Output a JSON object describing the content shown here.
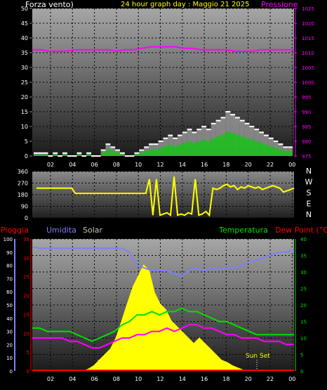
{
  "colors": {
    "wind": "#ffffff",
    "wind_fill": "#9a9a9a",
    "wind_avg": "#00d000",
    "pressure": "#ff00ff",
    "dir": "#ffff00",
    "rain": "#ff0000",
    "humidity": "#7f7fff",
    "solar": "#ffff00",
    "temperature": "#00e000",
    "dewpoint": "#ff00ff",
    "axis_text": "#ffffff",
    "title": "#ffff00"
  },
  "chart_data": [
    {
      "type": "line",
      "title": "24 hour graph day : Maggio 21 2025",
      "left_label": "Forza vento)",
      "right_label": "Pressione",
      "x_ticks": [
        "02",
        "04",
        "06",
        "08",
        "10",
        "12",
        "14",
        "16",
        "18",
        "20",
        "22",
        "00"
      ],
      "y_left_ticks": [
        0,
        5,
        10,
        15,
        20,
        25,
        30,
        35,
        40,
        45,
        50
      ],
      "y_right_ticks": [
        975,
        980,
        985,
        990,
        995,
        1000,
        1005,
        1010,
        1015,
        1020,
        1025
      ],
      "ylim_left": [
        0,
        50
      ],
      "ylim_right": [
        975,
        1025
      ],
      "grid": true,
      "series": [
        {
          "name": "Forza vento)",
          "values": [
            1,
            1,
            1,
            0,
            1,
            0,
            1,
            0,
            0,
            1,
            0,
            1,
            0,
            0,
            2,
            4,
            3,
            2,
            1,
            0,
            0,
            1,
            2,
            3,
            4,
            4,
            5,
            6,
            7,
            6,
            7,
            8,
            9,
            8,
            9,
            10,
            9,
            11,
            12,
            13,
            15,
            14,
            13,
            12,
            11,
            10,
            9,
            8,
            7,
            6,
            5,
            4,
            3,
            3
          ]
        },
        {
          "name": "Pressione",
          "values": [
            1011,
            1011,
            1010.5,
            1010.5,
            1010.5,
            1011,
            1011,
            1011,
            1011,
            1011,
            1010.5,
            1011,
            1011,
            1011.5,
            1012,
            1012,
            1012,
            1012,
            1011.5,
            1011.5,
            1011,
            1011,
            1011,
            1011,
            1010.5,
            1010.5,
            1010.5,
            1011,
            1011,
            1011,
            1011,
            1011
          ]
        }
      ]
    },
    {
      "type": "line",
      "title": "",
      "y_left_ticks": [
        0,
        90,
        180,
        270,
        360
      ],
      "y_right_ticks": [
        "N",
        "W",
        "S",
        "E",
        "N"
      ],
      "ylim_left": [
        0,
        360
      ],
      "grid": true,
      "series": [
        {
          "name": "direction",
          "values": [
            230,
            230,
            230,
            230,
            230,
            230,
            230,
            230,
            230,
            230,
            230,
            190,
            190,
            190,
            190,
            190,
            190,
            190,
            190,
            190,
            190,
            190,
            190,
            190,
            190,
            190,
            190,
            190,
            190,
            190,
            190,
            190,
            300,
            20,
            300,
            20,
            30,
            40,
            20,
            320,
            20,
            30,
            20,
            40,
            30,
            300,
            20,
            30,
            50,
            20,
            230,
            220,
            230,
            250,
            260,
            240,
            250,
            220,
            240,
            230,
            250,
            240,
            230,
            240,
            220,
            230,
            240,
            250,
            240,
            230,
            200,
            210,
            220,
            230
          ]
        }
      ]
    },
    {
      "type": "line",
      "labels": {
        "rain": "Pioggia",
        "humidity": "Umidita",
        "solar": "Solar",
        "temperature": "Temperatura",
        "dewpoint": "Dew Point (°C)"
      },
      "x_ticks": [
        "02",
        "04",
        "06",
        "08",
        "10",
        "12",
        "14",
        "16",
        "18",
        "20",
        "22",
        "00"
      ],
      "y_pct_ticks": [
        0,
        10,
        20,
        30,
        40,
        50,
        60,
        70,
        80,
        90,
        100
      ],
      "y_rain_ticks": [
        0,
        5,
        10,
        15,
        20,
        25,
        30,
        35
      ],
      "y_temp_ticks": [
        0,
        5,
        10,
        15,
        20,
        25,
        30,
        35,
        40
      ],
      "ylim_temp": [
        0,
        40
      ],
      "annotation": "Sun Set",
      "grid": true,
      "series": [
        {
          "name": "Umidita",
          "values": [
            94,
            93,
            93,
            93,
            93,
            93,
            93,
            93,
            93,
            93,
            93,
            93,
            93,
            90,
            80,
            78,
            76,
            76,
            76,
            74,
            72,
            76,
            78,
            76,
            78,
            77,
            78,
            78,
            80,
            83,
            84,
            86,
            88,
            90,
            90,
            92
          ]
        },
        {
          "name": "Temperatura",
          "values": [
            13,
            13,
            12,
            12,
            12,
            12,
            11,
            10,
            9,
            10,
            11,
            12,
            14,
            15,
            17,
            17,
            18,
            17,
            18,
            18,
            19,
            18,
            18,
            17,
            16,
            15,
            15,
            14,
            13,
            12,
            11,
            11,
            11,
            11,
            11,
            11
          ]
        },
        {
          "name": "Dew Point (°C)",
          "values": [
            10,
            10,
            10,
            10,
            10,
            9,
            9,
            8,
            7,
            7,
            8,
            9,
            10,
            10,
            11,
            11,
            12,
            12,
            13,
            12,
            13,
            14,
            14,
            13,
            13,
            12,
            11,
            11,
            10,
            10,
            10,
            9,
            9,
            9,
            8,
            8
          ]
        },
        {
          "name": "Solar",
          "values": [
            0,
            0,
            0,
            0,
            0,
            0,
            0,
            0,
            0,
            0,
            0.02,
            0.05,
            0.1,
            0.15,
            0.2,
            0.3,
            0.45,
            0.6,
            0.75,
            0.85,
            0.95,
            0.9,
            0.7,
            0.6,
            0.55,
            0.45,
            0.4,
            0.35,
            0.3,
            0.25,
            0.3,
            0.25,
            0.2,
            0.15,
            0.1,
            0.08,
            0.05,
            0.03,
            0.01,
            0,
            0,
            0,
            0,
            0,
            0,
            0,
            0,
            0
          ]
        },
        {
          "name": "Pioggia",
          "values": [
            0,
            0,
            0,
            0,
            0,
            0,
            0,
            0,
            0,
            0,
            0,
            0,
            0,
            0,
            0,
            0,
            0,
            0,
            0,
            0,
            0,
            0,
            0,
            0
          ]
        }
      ]
    }
  ]
}
